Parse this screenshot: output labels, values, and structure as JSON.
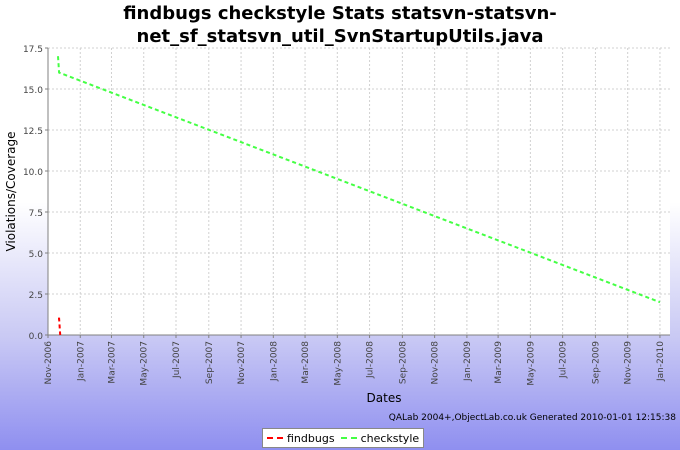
{
  "chart_data": {
    "type": "line",
    "title_line1": "findbugs checkstyle  Stats statsvn-statsvn-",
    "title_line2": "net_sf_statsvn_util_SvnStartupUtils.java",
    "xlabel": "Dates",
    "ylabel": "Violations/Coverage",
    "ylim": [
      0,
      17.5
    ],
    "yticks": [
      "0.0",
      "2.5",
      "5.0",
      "7.5",
      "10.0",
      "12.5",
      "15.0",
      "17.5"
    ],
    "xlim": [
      "2006-11-01",
      "2010-01-20"
    ],
    "xticks": [
      {
        "label": "Nov-2006",
        "date": "2006-11-01"
      },
      {
        "label": "Jan-2007",
        "date": "2007-01-01"
      },
      {
        "label": "Mar-2007",
        "date": "2007-03-01"
      },
      {
        "label": "May-2007",
        "date": "2007-05-01"
      },
      {
        "label": "Jul-2007",
        "date": "2007-07-01"
      },
      {
        "label": "Sep-2007",
        "date": "2007-09-01"
      },
      {
        "label": "Nov-2007",
        "date": "2007-11-01"
      },
      {
        "label": "Jan-2008",
        "date": "2008-01-01"
      },
      {
        "label": "Mar-2008",
        "date": "2008-03-01"
      },
      {
        "label": "May-2008",
        "date": "2008-05-01"
      },
      {
        "label": "Jul-2008",
        "date": "2008-07-01"
      },
      {
        "label": "Sep-2008",
        "date": "2008-09-01"
      },
      {
        "label": "Nov-2008",
        "date": "2008-11-01"
      },
      {
        "label": "Jan-2009",
        "date": "2009-01-01"
      },
      {
        "label": "Mar-2009",
        "date": "2009-03-01"
      },
      {
        "label": "May-2009",
        "date": "2009-05-01"
      },
      {
        "label": "Jul-2009",
        "date": "2009-07-01"
      },
      {
        "label": "Sep-2009",
        "date": "2009-09-01"
      },
      {
        "label": "Nov-2009",
        "date": "2009-11-01"
      },
      {
        "label": "Jan-2010",
        "date": "2010-01-01"
      }
    ],
    "grid": true,
    "legend_position": "bottom",
    "series": [
      {
        "name": "findbugs",
        "color": "#ff0000",
        "points": [
          {
            "x": "2006-11-20",
            "y": 1
          },
          {
            "x": "2006-11-22",
            "y": 1
          },
          {
            "x": "2006-11-24",
            "y": 0
          }
        ]
      },
      {
        "name": "checkstyle",
        "color": "#44ff44",
        "points": [
          {
            "x": "2006-11-20",
            "y": 17
          },
          {
            "x": "2006-11-22",
            "y": 16
          },
          {
            "x": "2010-01-01",
            "y": 2
          }
        ]
      }
    ]
  },
  "footer": {
    "credit": "QALab 2004+,ObjectLab.co.uk Generated 2010-01-01 12:15:38"
  }
}
